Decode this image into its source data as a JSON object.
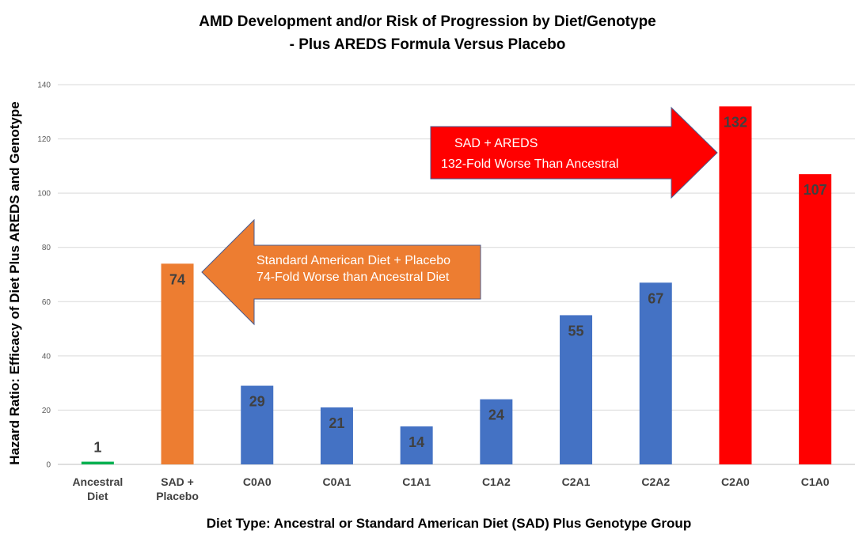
{
  "chart_data": {
    "type": "bar",
    "title_lines": [
      "AMD Development and/or Risk of Progression by Diet/Genotype",
      "- Plus AREDS Formula Versus Placebo"
    ],
    "xlabel": "Diet Type: Ancestral or Standard American Diet (SAD) Plus Genotype Group",
    "ylabel": "Hazard Ratio: Efficacy of Diet Plus AREDS and Genotype",
    "ylim": [
      0,
      140
    ],
    "yticks": [
      0,
      20,
      40,
      60,
      80,
      100,
      120,
      140
    ],
    "grid": true,
    "categories": [
      [
        "Ancestral",
        "Diet"
      ],
      [
        "SAD +",
        "Placebo"
      ],
      [
        "C0A0"
      ],
      [
        "C0A1"
      ],
      [
        "C1A1"
      ],
      [
        "C1A2"
      ],
      [
        "C2A1"
      ],
      [
        "C2A2"
      ],
      [
        "C2A0"
      ],
      [
        "C1A0"
      ]
    ],
    "values": [
      1,
      74,
      29,
      21,
      14,
      24,
      55,
      67,
      132,
      107
    ],
    "bar_colors": [
      "#00b050",
      "#ed7d31",
      "#4472c4",
      "#4472c4",
      "#4472c4",
      "#4472c4",
      "#4472c4",
      "#4472c4",
      "#ff0000",
      "#ff0000"
    ],
    "annotations": [
      {
        "lines": [
          "Standard American Diet + Placebo",
          "74-Fold Worse than Ancestral Diet"
        ],
        "color": "#ed7d31",
        "direction": "left"
      },
      {
        "lines": [
          "SAD + AREDS",
          "132-Fold Worse Than Ancestral"
        ],
        "color": "#ff0000",
        "direction": "right"
      }
    ]
  }
}
